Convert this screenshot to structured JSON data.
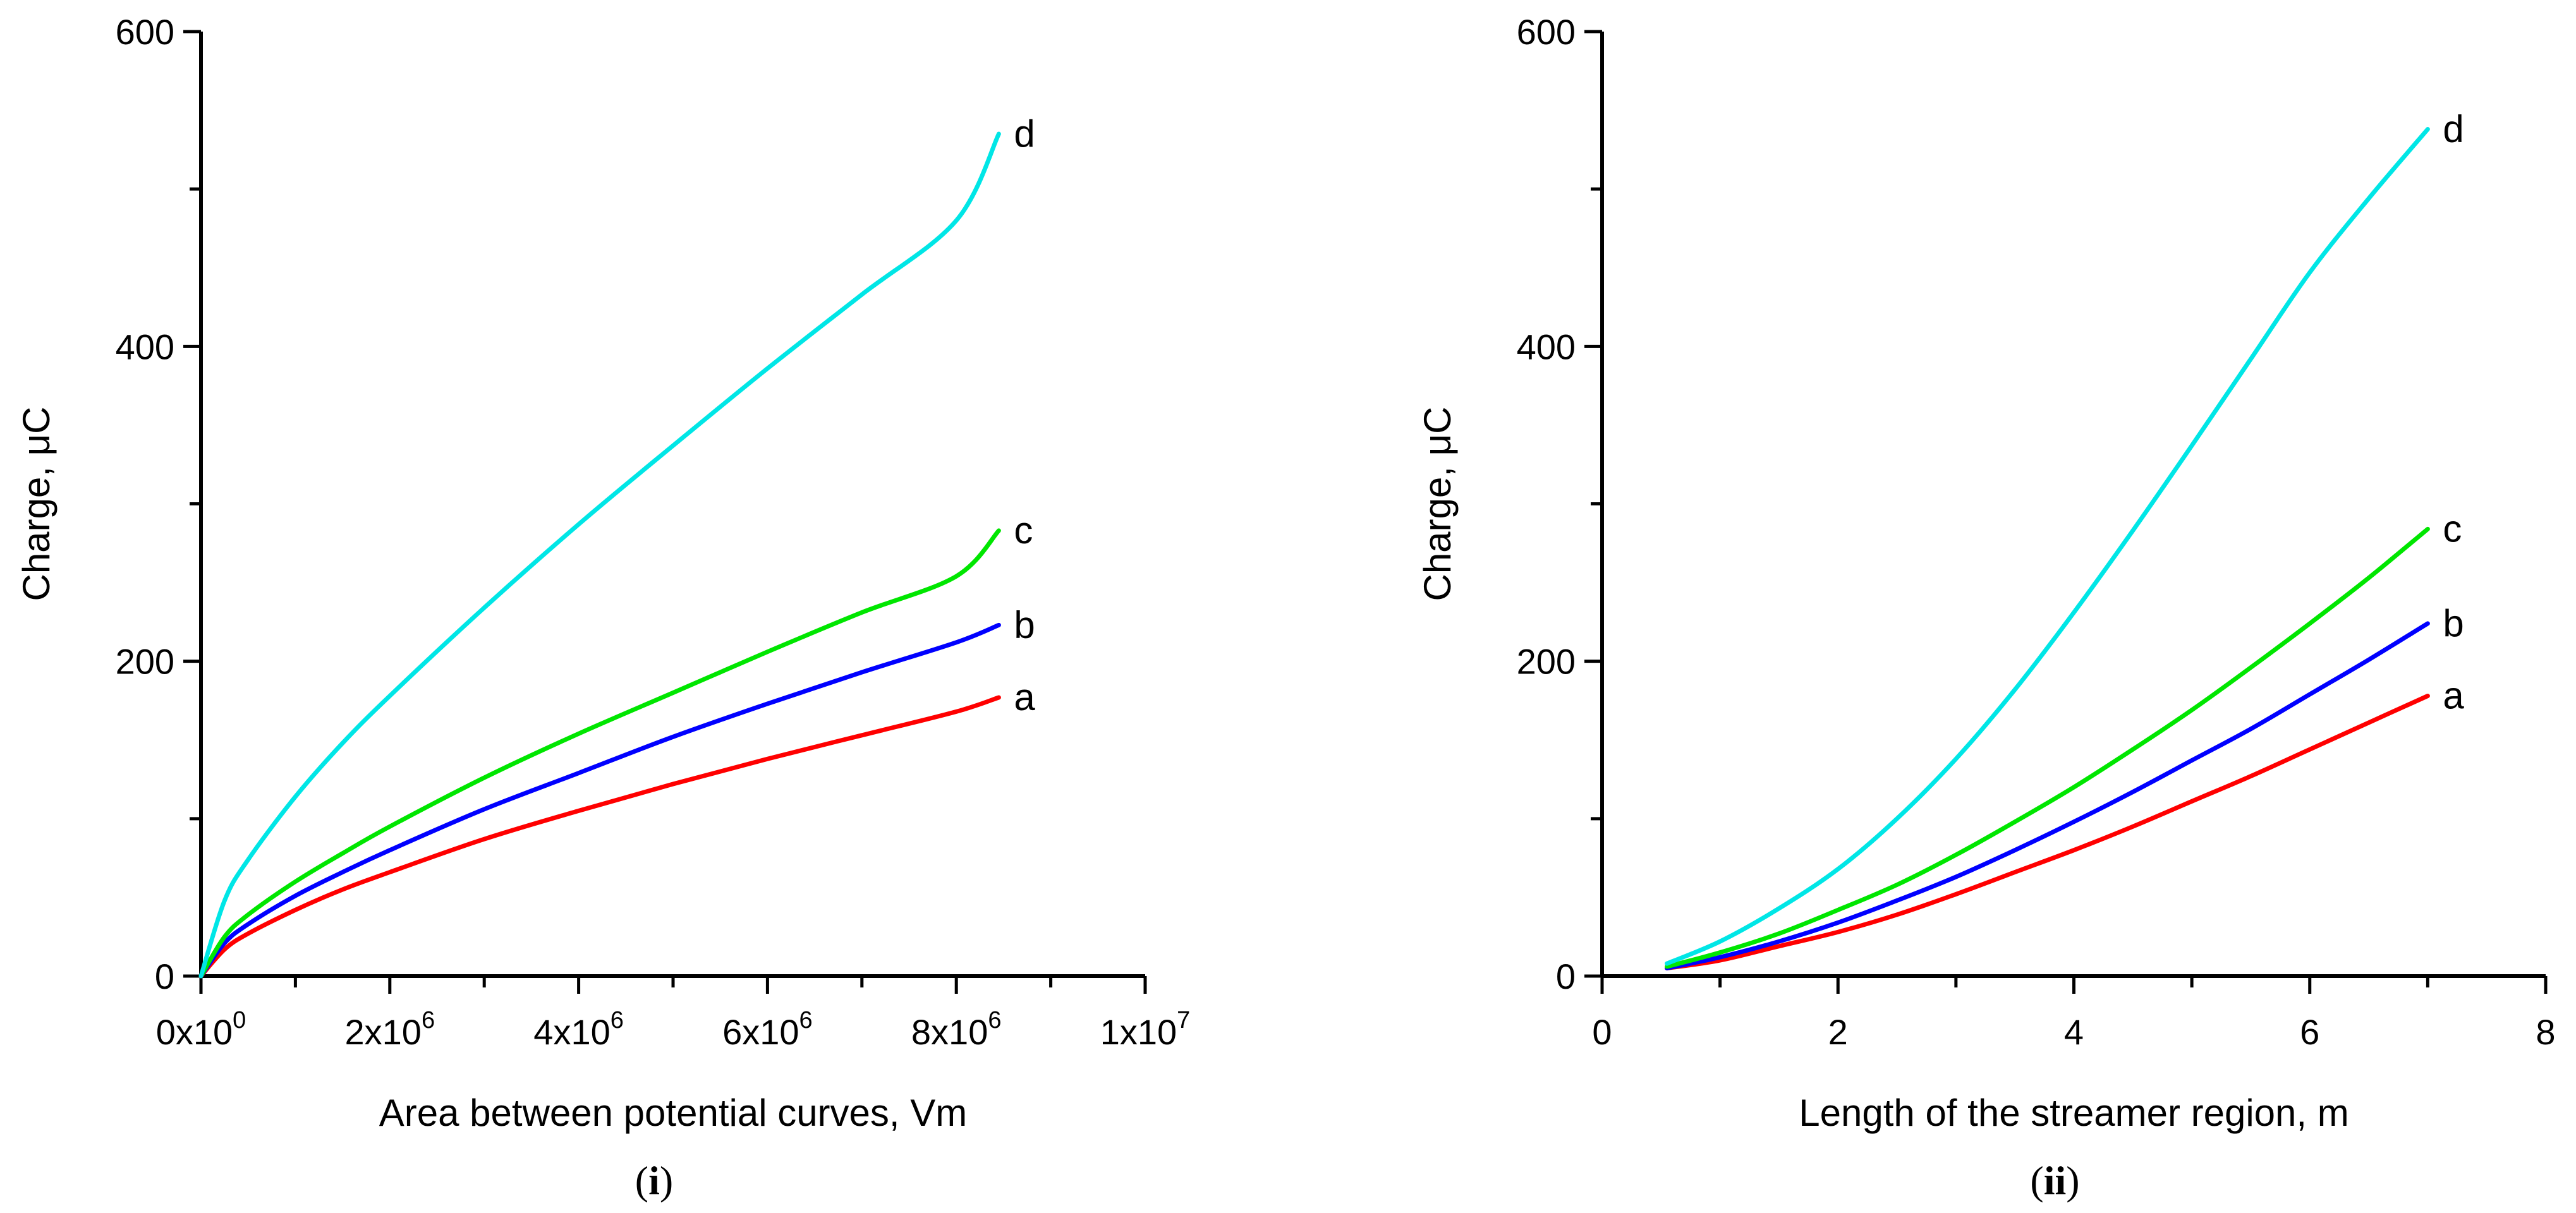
{
  "chart_data": [
    {
      "type": "line",
      "panel_label_prefix": "(",
      "panel_label_bold": "i",
      "panel_label_suffix": ")",
      "xlabel": "Area between potential curves, Vm",
      "ylabel": "Charge, μC",
      "xlim": [
        0,
        10000000
      ],
      "ylim": [
        0,
        600
      ],
      "xticks": [
        {
          "value": 0,
          "mantissa": "0x10",
          "exp": "0"
        },
        {
          "value": 2000000,
          "mantissa": "2x10",
          "exp": "6"
        },
        {
          "value": 4000000,
          "mantissa": "4x10",
          "exp": "6"
        },
        {
          "value": 6000000,
          "mantissa": "6x10",
          "exp": "6"
        },
        {
          "value": 8000000,
          "mantissa": "8x10",
          "exp": "6"
        },
        {
          "value": 10000000,
          "mantissa": "1x10",
          "exp": "7"
        }
      ],
      "x_minor_step": 1000000,
      "yticks": [
        0,
        200,
        400,
        600
      ],
      "y_minor_step": 100,
      "series": [
        {
          "name": "a",
          "color": "#ff0000",
          "x": [
            0,
            250000,
            500000,
            1000000,
            1500000,
            2000000,
            3000000,
            4000000,
            5000000,
            6000000,
            7000000,
            8000000,
            8450000
          ],
          "y": [
            0,
            17,
            27,
            42,
            55,
            66,
            87,
            105,
            122,
            138,
            153,
            168,
            177
          ]
        },
        {
          "name": "b",
          "color": "#0000ff",
          "x": [
            0,
            250000,
            500000,
            1000000,
            1500000,
            2000000,
            3000000,
            4000000,
            5000000,
            6000000,
            7000000,
            8000000,
            8450000
          ],
          "y": [
            0,
            21,
            33,
            51,
            66,
            80,
            106,
            129,
            152,
            173,
            193,
            212,
            223
          ]
        },
        {
          "name": "c",
          "color": "#00e600",
          "x": [
            0,
            250000,
            500000,
            1000000,
            1500000,
            2000000,
            3000000,
            4000000,
            5000000,
            6000000,
            7000000,
            8000000,
            8450000
          ],
          "y": [
            0,
            25,
            39,
            60,
            78,
            95,
            126,
            154,
            180,
            206,
            231,
            254,
            283
          ]
        },
        {
          "name": "d",
          "color": "#00e6e6",
          "x": [
            0,
            250000,
            500000,
            1000000,
            1500000,
            2000000,
            3000000,
            4000000,
            5000000,
            6000000,
            7000000,
            8000000,
            8450000
          ],
          "y": [
            0,
            48,
            74,
            114,
            148,
            178,
            234,
            287,
            337,
            386,
            433,
            480,
            535
          ]
        }
      ]
    },
    {
      "type": "line",
      "panel_label_prefix": "(",
      "panel_label_bold": "ii",
      "panel_label_suffix": ")",
      "xlabel": "Length of the streamer region, m",
      "ylabel": "Charge, μC",
      "xlim": [
        0,
        8
      ],
      "ylim": [
        0,
        600
      ],
      "xticks": [
        {
          "value": 0,
          "mantissa": "0",
          "exp": ""
        },
        {
          "value": 2,
          "mantissa": "2",
          "exp": ""
        },
        {
          "value": 4,
          "mantissa": "4",
          "exp": ""
        },
        {
          "value": 6,
          "mantissa": "6",
          "exp": ""
        },
        {
          "value": 8,
          "mantissa": "8",
          "exp": ""
        }
      ],
      "x_minor_step": 1,
      "yticks": [
        0,
        200,
        400,
        600
      ],
      "y_minor_step": 100,
      "series": [
        {
          "name": "a",
          "color": "#ff0000",
          "x": [
            0.55,
            1,
            1.5,
            2,
            2.5,
            3,
            3.5,
            4,
            4.5,
            5,
            5.5,
            6,
            6.5,
            7.0
          ],
          "y": [
            5,
            10,
            19,
            28,
            39,
            52,
            66,
            80,
            95,
            111,
            127,
            144,
            161,
            178
          ]
        },
        {
          "name": "b",
          "color": "#0000ff",
          "x": [
            0.55,
            1,
            1.5,
            2,
            2.5,
            3,
            3.5,
            4,
            4.5,
            5,
            5.5,
            6,
            6.5,
            7.0
          ],
          "y": [
            5,
            12,
            22,
            34,
            48,
            63,
            80,
            98,
            117,
            137,
            157,
            179,
            201,
            224
          ]
        },
        {
          "name": "c",
          "color": "#00e600",
          "x": [
            0.55,
            1,
            1.5,
            2,
            2.5,
            3,
            3.5,
            4,
            4.5,
            5,
            5.5,
            6,
            6.5,
            7.0
          ],
          "y": [
            6,
            15,
            27,
            42,
            58,
            77,
            98,
            120,
            144,
            169,
            196,
            224,
            253,
            284
          ]
        },
        {
          "name": "d",
          "color": "#00e6e6",
          "x": [
            0.55,
            1,
            1.5,
            2,
            2.5,
            3,
            3.5,
            4,
            4.5,
            5,
            5.5,
            6,
            6.5,
            7.0
          ],
          "y": [
            8,
            22,
            43,
            68,
            100,
            138,
            182,
            231,
            283,
            337,
            392,
            447,
            494,
            538
          ]
        }
      ]
    }
  ]
}
